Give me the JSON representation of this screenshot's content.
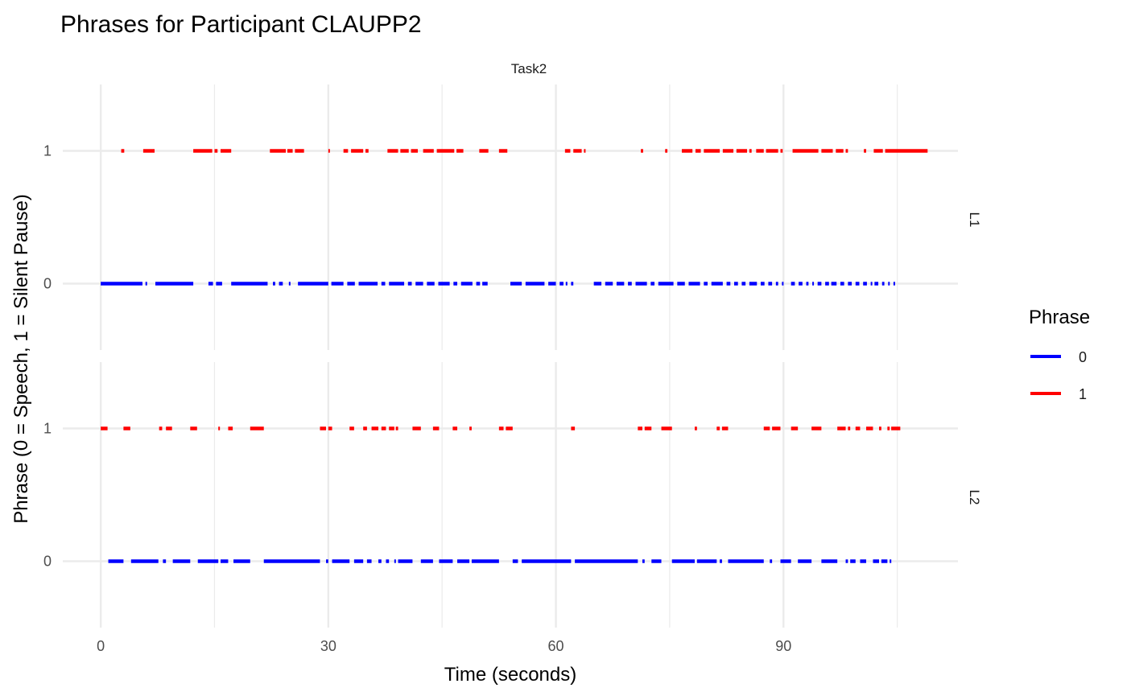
{
  "chart_data": {
    "type": "line",
    "title": "Phrases for Participant CLAUPP2",
    "xlabel": "Time (seconds)",
    "ylabel": "Phrase (0 = Speech, 1 = Silent Pause)",
    "xlim": [
      -5,
      113
    ],
    "ylim": [
      -0.5,
      1.5
    ],
    "x_ticks": [
      "0",
      "30",
      "60",
      "90"
    ],
    "x_tick_values": [
      0,
      30,
      60,
      90
    ],
    "y_ticks": [
      "0",
      "1"
    ],
    "grid": true,
    "column_facets": [
      "Task2"
    ],
    "row_facets": [
      "L1",
      "L2"
    ],
    "legend": {
      "title": "Phrase",
      "position": "right",
      "entries": [
        {
          "label": "0",
          "color": "#0000ff"
        },
        {
          "label": "1",
          "color": "#ff0000"
        }
      ]
    },
    "panels": [
      {
        "facet": "L1",
        "series": [
          {
            "level": 1,
            "color": "#ff0000",
            "segments": [
              [
                2.7,
                3.1
              ],
              [
                5.6,
                7.1
              ],
              [
                12.2,
                14.7
              ],
              [
                15.0,
                15.4
              ],
              [
                15.8,
                17.2
              ],
              [
                22.3,
                24.4
              ],
              [
                24.6,
                25.3
              ],
              [
                25.6,
                26.8
              ],
              [
                30.0,
                30.2
              ],
              [
                32.0,
                32.6
              ],
              [
                33.0,
                34.6
              ],
              [
                34.9,
                35.3
              ],
              [
                37.8,
                39.2
              ],
              [
                39.5,
                40.6
              ],
              [
                40.9,
                41.8
              ],
              [
                42.5,
                43.9
              ],
              [
                44.3,
                46.6
              ],
              [
                46.9,
                47.8
              ],
              [
                49.9,
                51.1
              ],
              [
                52.5,
                53.6
              ],
              [
                61.2,
                61.9
              ],
              [
                62.3,
                63.4
              ],
              [
                63.7,
                63.9
              ],
              [
                71.2,
                71.5
              ],
              [
                74.4,
                74.7
              ],
              [
                76.6,
                78.0
              ],
              [
                78.4,
                79.1
              ],
              [
                79.5,
                81.6
              ],
              [
                82.0,
                83.4
              ],
              [
                83.8,
                85.2
              ],
              [
                85.5,
                85.8
              ],
              [
                86.4,
                87.4
              ],
              [
                87.7,
                89.3
              ],
              [
                89.6,
                89.9
              ],
              [
                91.2,
                94.6
              ],
              [
                95.0,
                96.5
              ],
              [
                96.9,
                97.9
              ],
              [
                98.2,
                98.5
              ],
              [
                100.6,
                100.9
              ],
              [
                101.9,
                103.1
              ],
              [
                103.4,
                109.0
              ]
            ]
          },
          {
            "level": 0,
            "color": "#0000ff",
            "segments": [
              [
                0.0,
                5.5
              ],
              [
                5.9,
                6.1
              ],
              [
                7.2,
                12.2
              ],
              [
                14.2,
                14.8
              ],
              [
                15.2,
                16.0
              ],
              [
                17.2,
                22.0
              ],
              [
                22.7,
                23.0
              ],
              [
                23.5,
                24.0
              ],
              [
                24.8,
                25.0
              ],
              [
                26.0,
                30.0
              ],
              [
                30.4,
                32.0
              ],
              [
                32.5,
                33.5
              ],
              [
                34.0,
                36.5
              ],
              [
                37.0,
                37.5
              ],
              [
                38.0,
                40.0
              ],
              [
                40.5,
                41.0
              ],
              [
                41.5,
                42.5
              ],
              [
                43.0,
                44.0
              ],
              [
                44.5,
                46.0
              ],
              [
                46.5,
                47.0
              ],
              [
                47.5,
                49.0
              ],
              [
                49.5,
                50.0
              ],
              [
                50.3,
                51.0
              ],
              [
                54.0,
                55.5
              ],
              [
                56.0,
                58.5
              ],
              [
                59.0,
                60.0
              ],
              [
                60.5,
                61.0
              ],
              [
                61.3,
                61.5
              ],
              [
                62.0,
                62.3
              ],
              [
                65.0,
                66.0
              ],
              [
                66.5,
                67.5
              ],
              [
                68.0,
                69.0
              ],
              [
                69.5,
                70.0
              ],
              [
                70.5,
                72.0
              ],
              [
                72.5,
                73.0
              ],
              [
                73.5,
                75.5
              ],
              [
                76.0,
                77.0
              ],
              [
                77.5,
                79.0
              ],
              [
                79.5,
                80.0
              ],
              [
                80.5,
                82.0
              ],
              [
                82.5,
                83.0
              ],
              [
                83.5,
                84.0
              ],
              [
                84.5,
                85.0
              ],
              [
                85.5,
                86.5
              ],
              [
                87.0,
                87.5
              ],
              [
                88.0,
                88.5
              ],
              [
                89.0,
                89.3
              ],
              [
                89.8,
                90.0
              ],
              [
                91.0,
                91.5
              ],
              [
                92.0,
                92.5
              ],
              [
                93.0,
                93.3
              ],
              [
                93.8,
                94.0
              ],
              [
                94.5,
                95.0
              ],
              [
                95.5,
                96.0
              ],
              [
                96.3,
                97.0
              ],
              [
                97.5,
                98.0
              ],
              [
                98.5,
                99.0
              ],
              [
                99.5,
                100.0
              ],
              [
                100.5,
                101.0
              ],
              [
                101.5,
                101.7
              ],
              [
                102.0,
                102.5
              ],
              [
                103.0,
                103.3
              ],
              [
                103.8,
                104.0
              ],
              [
                104.5,
                104.7
              ]
            ]
          }
        ]
      },
      {
        "facet": "L2",
        "series": [
          {
            "level": 1,
            "color": "#ff0000",
            "segments": [
              [
                0.0,
                0.9
              ],
              [
                3.0,
                3.9
              ],
              [
                7.7,
                8.1
              ],
              [
                8.6,
                9.4
              ],
              [
                11.8,
                12.7
              ],
              [
                15.5,
                15.7
              ],
              [
                16.8,
                17.4
              ],
              [
                19.7,
                21.5
              ],
              [
                28.9,
                29.7
              ],
              [
                30.0,
                30.5
              ],
              [
                32.8,
                33.4
              ],
              [
                34.6,
                35.1
              ],
              [
                35.7,
                36.6
              ],
              [
                37.0,
                37.6
              ],
              [
                38.0,
                38.7
              ],
              [
                38.9,
                39.2
              ],
              [
                41.1,
                42.2
              ],
              [
                43.8,
                44.6
              ],
              [
                46.4,
                47.0
              ],
              [
                48.6,
                48.9
              ],
              [
                52.5,
                53.1
              ],
              [
                53.4,
                54.3
              ],
              [
                62.0,
                62.5
              ],
              [
                70.8,
                71.4
              ],
              [
                71.7,
                72.6
              ],
              [
                73.9,
                75.3
              ],
              [
                78.3,
                78.6
              ],
              [
                81.2,
                81.6
              ],
              [
                81.9,
                82.7
              ],
              [
                87.4,
                88.2
              ],
              [
                88.5,
                89.6
              ],
              [
                91.0,
                91.9
              ],
              [
                93.7,
                95.0
              ],
              [
                97.1,
                98.2
              ],
              [
                98.5,
                98.8
              ],
              [
                99.5,
                100.1
              ],
              [
                100.9,
                101.8
              ],
              [
                102.6,
                102.9
              ],
              [
                103.7,
                104.0
              ],
              [
                104.2,
                105.4
              ]
            ]
          },
          {
            "level": 0,
            "color": "#0000ff",
            "segments": [
              [
                1.0,
                3.0
              ],
              [
                4.0,
                7.6
              ],
              [
                8.2,
                8.6
              ],
              [
                9.5,
                11.8
              ],
              [
                12.8,
                15.5
              ],
              [
                15.8,
                16.8
              ],
              [
                17.5,
                19.7
              ],
              [
                21.5,
                28.9
              ],
              [
                29.7,
                30.0
              ],
              [
                30.5,
                32.8
              ],
              [
                33.4,
                34.6
              ],
              [
                35.1,
                35.7
              ],
              [
                36.6,
                37.0
              ],
              [
                37.6,
                38.0
              ],
              [
                38.7,
                38.9
              ],
              [
                39.2,
                41.1
              ],
              [
                42.2,
                43.8
              ],
              [
                44.6,
                46.4
              ],
              [
                47.0,
                48.6
              ],
              [
                48.9,
                52.5
              ],
              [
                54.3,
                55.0
              ],
              [
                55.5,
                62.0
              ],
              [
                62.5,
                70.8
              ],
              [
                71.4,
                71.7
              ],
              [
                72.6,
                73.9
              ],
              [
                75.3,
                78.3
              ],
              [
                78.6,
                81.2
              ],
              [
                81.6,
                81.9
              ],
              [
                82.7,
                87.4
              ],
              [
                88.2,
                88.5
              ],
              [
                89.6,
                91.0
              ],
              [
                91.9,
                93.7
              ],
              [
                95.0,
                97.1
              ],
              [
                98.2,
                98.5
              ],
              [
                98.8,
                99.5
              ],
              [
                100.1,
                100.9
              ],
              [
                101.8,
                102.6
              ],
              [
                102.9,
                103.7
              ],
              [
                104.0,
                104.2
              ]
            ]
          }
        ]
      }
    ]
  }
}
